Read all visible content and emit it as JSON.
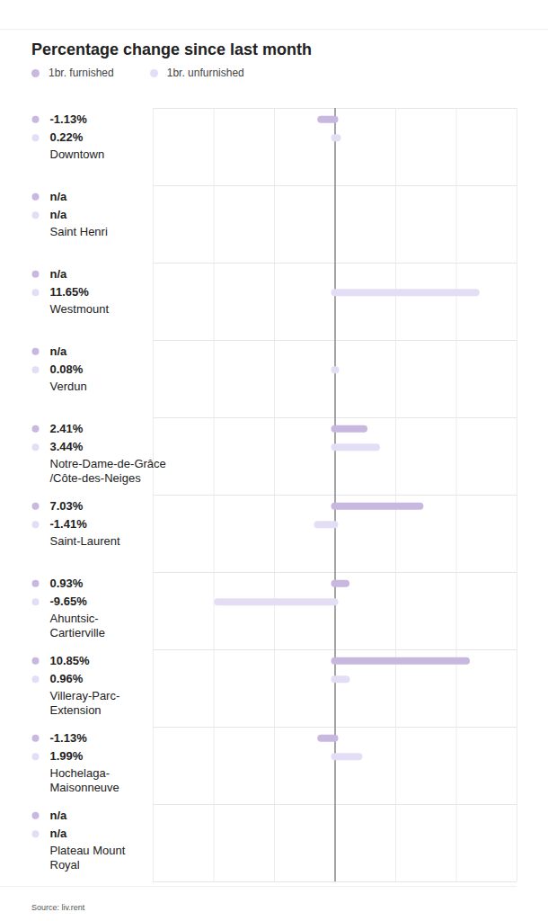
{
  "chart_data": {
    "type": "bar",
    "title": "Percentage change since last month",
    "orientation": "horizontal",
    "categories": [
      "Downtown",
      "Saint Henri",
      "Westmount",
      "Verdun",
      "Notre-Dame-de-Grâce/Côte-des-Neiges",
      "Saint-Laurent",
      "Ahuntsic-Cartierville",
      "Villeray-Parc-Extension",
      "Hochelaga-Maisonneuve",
      "Plateau Mount Royal"
    ],
    "series": [
      {
        "name": "1br. furnished",
        "color": "#c8b8e0",
        "values": [
          -1.13,
          null,
          null,
          null,
          2.41,
          7.03,
          0.93,
          10.85,
          -1.13,
          null
        ],
        "value_labels": [
          "-1.13%",
          "n/a",
          "n/a",
          "n/a",
          "2.41%",
          "7.03%",
          "0.93%",
          "10.85%",
          "-1.13%",
          "n/a"
        ]
      },
      {
        "name": "1br. unfurnished",
        "color": "#e4ddf6",
        "values": [
          0.22,
          null,
          11.65,
          0.08,
          3.44,
          -1.41,
          -9.65,
          0.96,
          1.99,
          null
        ],
        "value_labels": [
          "0.22%",
          "n/a",
          "11.65%",
          "0.08%",
          "3.44%",
          "-1.41%",
          "-9.65%",
          "0.96%",
          "1.99%",
          "n/a"
        ]
      }
    ],
    "xlim": [
      -15,
      15
    ],
    "xticks": [
      -15,
      -10,
      -5,
      0,
      5,
      10,
      15
    ],
    "grid": true,
    "tick_labels": false,
    "data_labels": true,
    "legend": "top-left",
    "source": "Source: liv.rent"
  }
}
